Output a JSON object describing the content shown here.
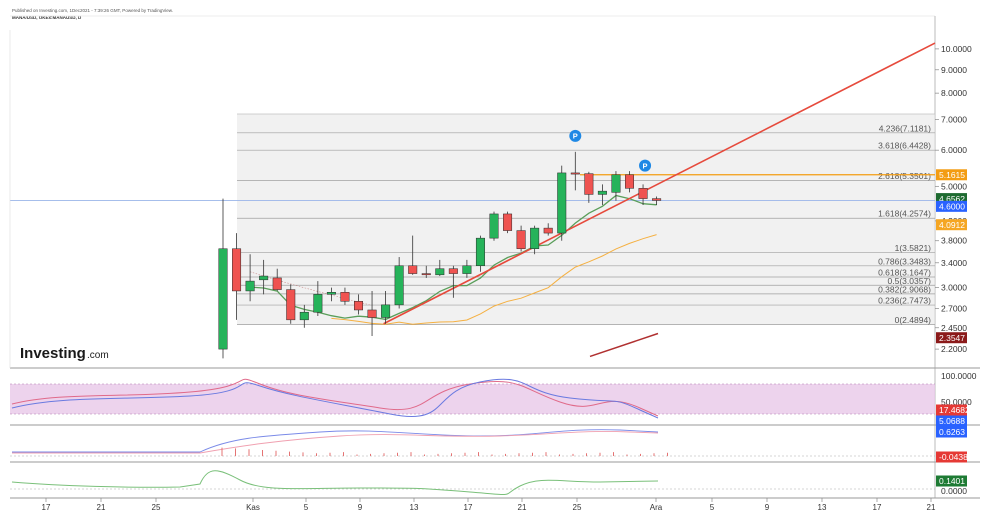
{
  "header": {
    "published": "Published on Investing.com, 1Dec2021 - 7:39:26 GMT, Powered by TradingView.",
    "symbol": "MANA/USD, OKEx:MANAUSD, D"
  },
  "logo": {
    "text": "Investing",
    "suffix": ".com"
  },
  "colors": {
    "bull": "#26b35a",
    "bear": "#ef5350",
    "trend": "#e64a3c",
    "ma_green": "#5a9e5a",
    "ma_orange": "#f5b041",
    "ma_darkred": "#b03030",
    "fib_fill": "#e6e6e6",
    "rsi_band": "#e8c8e8",
    "price_line": "#9ab4e8"
  },
  "chart_data": {
    "type": "candlestick",
    "y_scale": "log",
    "price_ticks": [
      "10.0000",
      "9.0000",
      "8.0000",
      "7.0000",
      "6.0000",
      "5.0000",
      "4.2000",
      "3.8000",
      "3.4000",
      "3.0000",
      "2.7000",
      "2.4500",
      "2.2000"
    ],
    "x_ticks": [
      "17",
      "21",
      "25",
      "Kas",
      "5",
      "9",
      "13",
      "17",
      "21",
      "25",
      "Ara",
      "5",
      "9",
      "13",
      "17",
      "21"
    ],
    "candles": [
      {
        "o": 2.2,
        "h": 4.7,
        "l": 2.1,
        "c": 3.65
      },
      {
        "o": 3.65,
        "h": 3.95,
        "l": 2.55,
        "c": 2.95
      },
      {
        "o": 2.95,
        "h": 3.55,
        "l": 2.8,
        "c": 3.1
      },
      {
        "o": 3.12,
        "h": 3.45,
        "l": 2.9,
        "c": 3.18
      },
      {
        "o": 3.15,
        "h": 3.3,
        "l": 2.95,
        "c": 2.97
      },
      {
        "o": 2.97,
        "h": 3.05,
        "l": 2.5,
        "c": 2.55
      },
      {
        "o": 2.55,
        "h": 2.75,
        "l": 2.45,
        "c": 2.65
      },
      {
        "o": 2.65,
        "h": 3.1,
        "l": 2.6,
        "c": 2.9
      },
      {
        "o": 2.9,
        "h": 3.0,
        "l": 2.8,
        "c": 2.93
      },
      {
        "o": 2.93,
        "h": 3.0,
        "l": 2.75,
        "c": 2.8
      },
      {
        "o": 2.8,
        "h": 2.9,
        "l": 2.62,
        "c": 2.68
      },
      {
        "o": 2.68,
        "h": 2.95,
        "l": 2.35,
        "c": 2.58
      },
      {
        "o": 2.58,
        "h": 2.95,
        "l": 2.5,
        "c": 2.75
      },
      {
        "o": 2.75,
        "h": 3.5,
        "l": 2.7,
        "c": 3.35
      },
      {
        "o": 3.35,
        "h": 3.9,
        "l": 3.2,
        "c": 3.22
      },
      {
        "o": 3.22,
        "h": 3.35,
        "l": 3.15,
        "c": 3.2
      },
      {
        "o": 3.2,
        "h": 3.45,
        "l": 3.18,
        "c": 3.3
      },
      {
        "o": 3.3,
        "h": 3.35,
        "l": 2.85,
        "c": 3.22
      },
      {
        "o": 3.22,
        "h": 3.45,
        "l": 3.15,
        "c": 3.35
      },
      {
        "o": 3.35,
        "h": 3.9,
        "l": 3.25,
        "c": 3.85
      },
      {
        "o": 3.85,
        "h": 4.4,
        "l": 3.8,
        "c": 4.35
      },
      {
        "o": 4.35,
        "h": 4.4,
        "l": 3.95,
        "c": 4.0
      },
      {
        "o": 4.0,
        "h": 4.1,
        "l": 3.6,
        "c": 3.65
      },
      {
        "o": 3.65,
        "h": 4.1,
        "l": 3.55,
        "c": 4.05
      },
      {
        "o": 4.05,
        "h": 4.15,
        "l": 3.9,
        "c": 3.95
      },
      {
        "o": 3.95,
        "h": 5.55,
        "l": 3.8,
        "c": 5.35
      },
      {
        "o": 5.35,
        "h": 5.95,
        "l": 4.9,
        "c": 5.33
      },
      {
        "o": 5.33,
        "h": 5.38,
        "l": 4.6,
        "c": 4.8
      },
      {
        "o": 4.8,
        "h": 5.05,
        "l": 4.55,
        "c": 4.88
      },
      {
        "o": 4.85,
        "h": 5.4,
        "l": 4.65,
        "c": 5.3
      },
      {
        "o": 5.3,
        "h": 5.4,
        "l": 4.85,
        "c": 4.95
      },
      {
        "o": 4.95,
        "h": 5.05,
        "l": 4.55,
        "c": 4.7
      },
      {
        "o": 4.7,
        "h": 4.75,
        "l": 4.55,
        "c": 4.656
      }
    ],
    "fib_levels": [
      {
        "label": "4.236(7.1181)",
        "value": 6.55
      },
      {
        "label": "3.618(6.4428)",
        "value": 6.0
      },
      {
        "label": "2.618(5.3501)",
        "value": 5.15
      },
      {
        "label": "1.618(4.2574)",
        "value": 4.257
      },
      {
        "label": "1(3.5821)",
        "value": 3.5821
      },
      {
        "label": "0.786(3.3483)",
        "value": 3.3483
      },
      {
        "label": "0.618(3.1647)",
        "value": 3.1647
      },
      {
        "label": "0.5(3.0357)",
        "value": 3.0357
      },
      {
        "label": "0.382(2.9068)",
        "value": 2.9068
      },
      {
        "label": "0.236(2.7473)",
        "value": 2.7473
      },
      {
        "label": "0(2.4894)",
        "value": 2.4894
      }
    ],
    "price_badges": [
      {
        "label": "5.1615",
        "value": 5.3,
        "color": "#f39c12"
      },
      {
        "label": "4.6562",
        "value": 4.7,
        "color": "#1e6b30"
      },
      {
        "label": "4.6000",
        "value": 4.52,
        "color": "#2962ff"
      },
      {
        "label": "4.0912",
        "value": 4.12,
        "color": "#f5a623"
      },
      {
        "label": "2.3547",
        "value": 2.33,
        "color": "#8b1a1a"
      }
    ],
    "pivot_markers": [
      "P",
      "P"
    ],
    "rsi": {
      "ticks": [
        "100.0000",
        "50.0000"
      ],
      "badges": [
        {
          "label": "17.4682",
          "color": "#e53935"
        },
        {
          "label": "5.0688",
          "color": "#2962ff"
        }
      ]
    },
    "macd": {
      "badges": [
        {
          "label": "0.6263",
          "color": "#2962ff"
        },
        {
          "label": "-0.0438",
          "color": "#e53935"
        }
      ]
    },
    "oscillator": {
      "ticks": [
        "0.0000"
      ],
      "badges": [
        {
          "label": "0.1401",
          "color": "#1e7b34"
        }
      ]
    }
  }
}
